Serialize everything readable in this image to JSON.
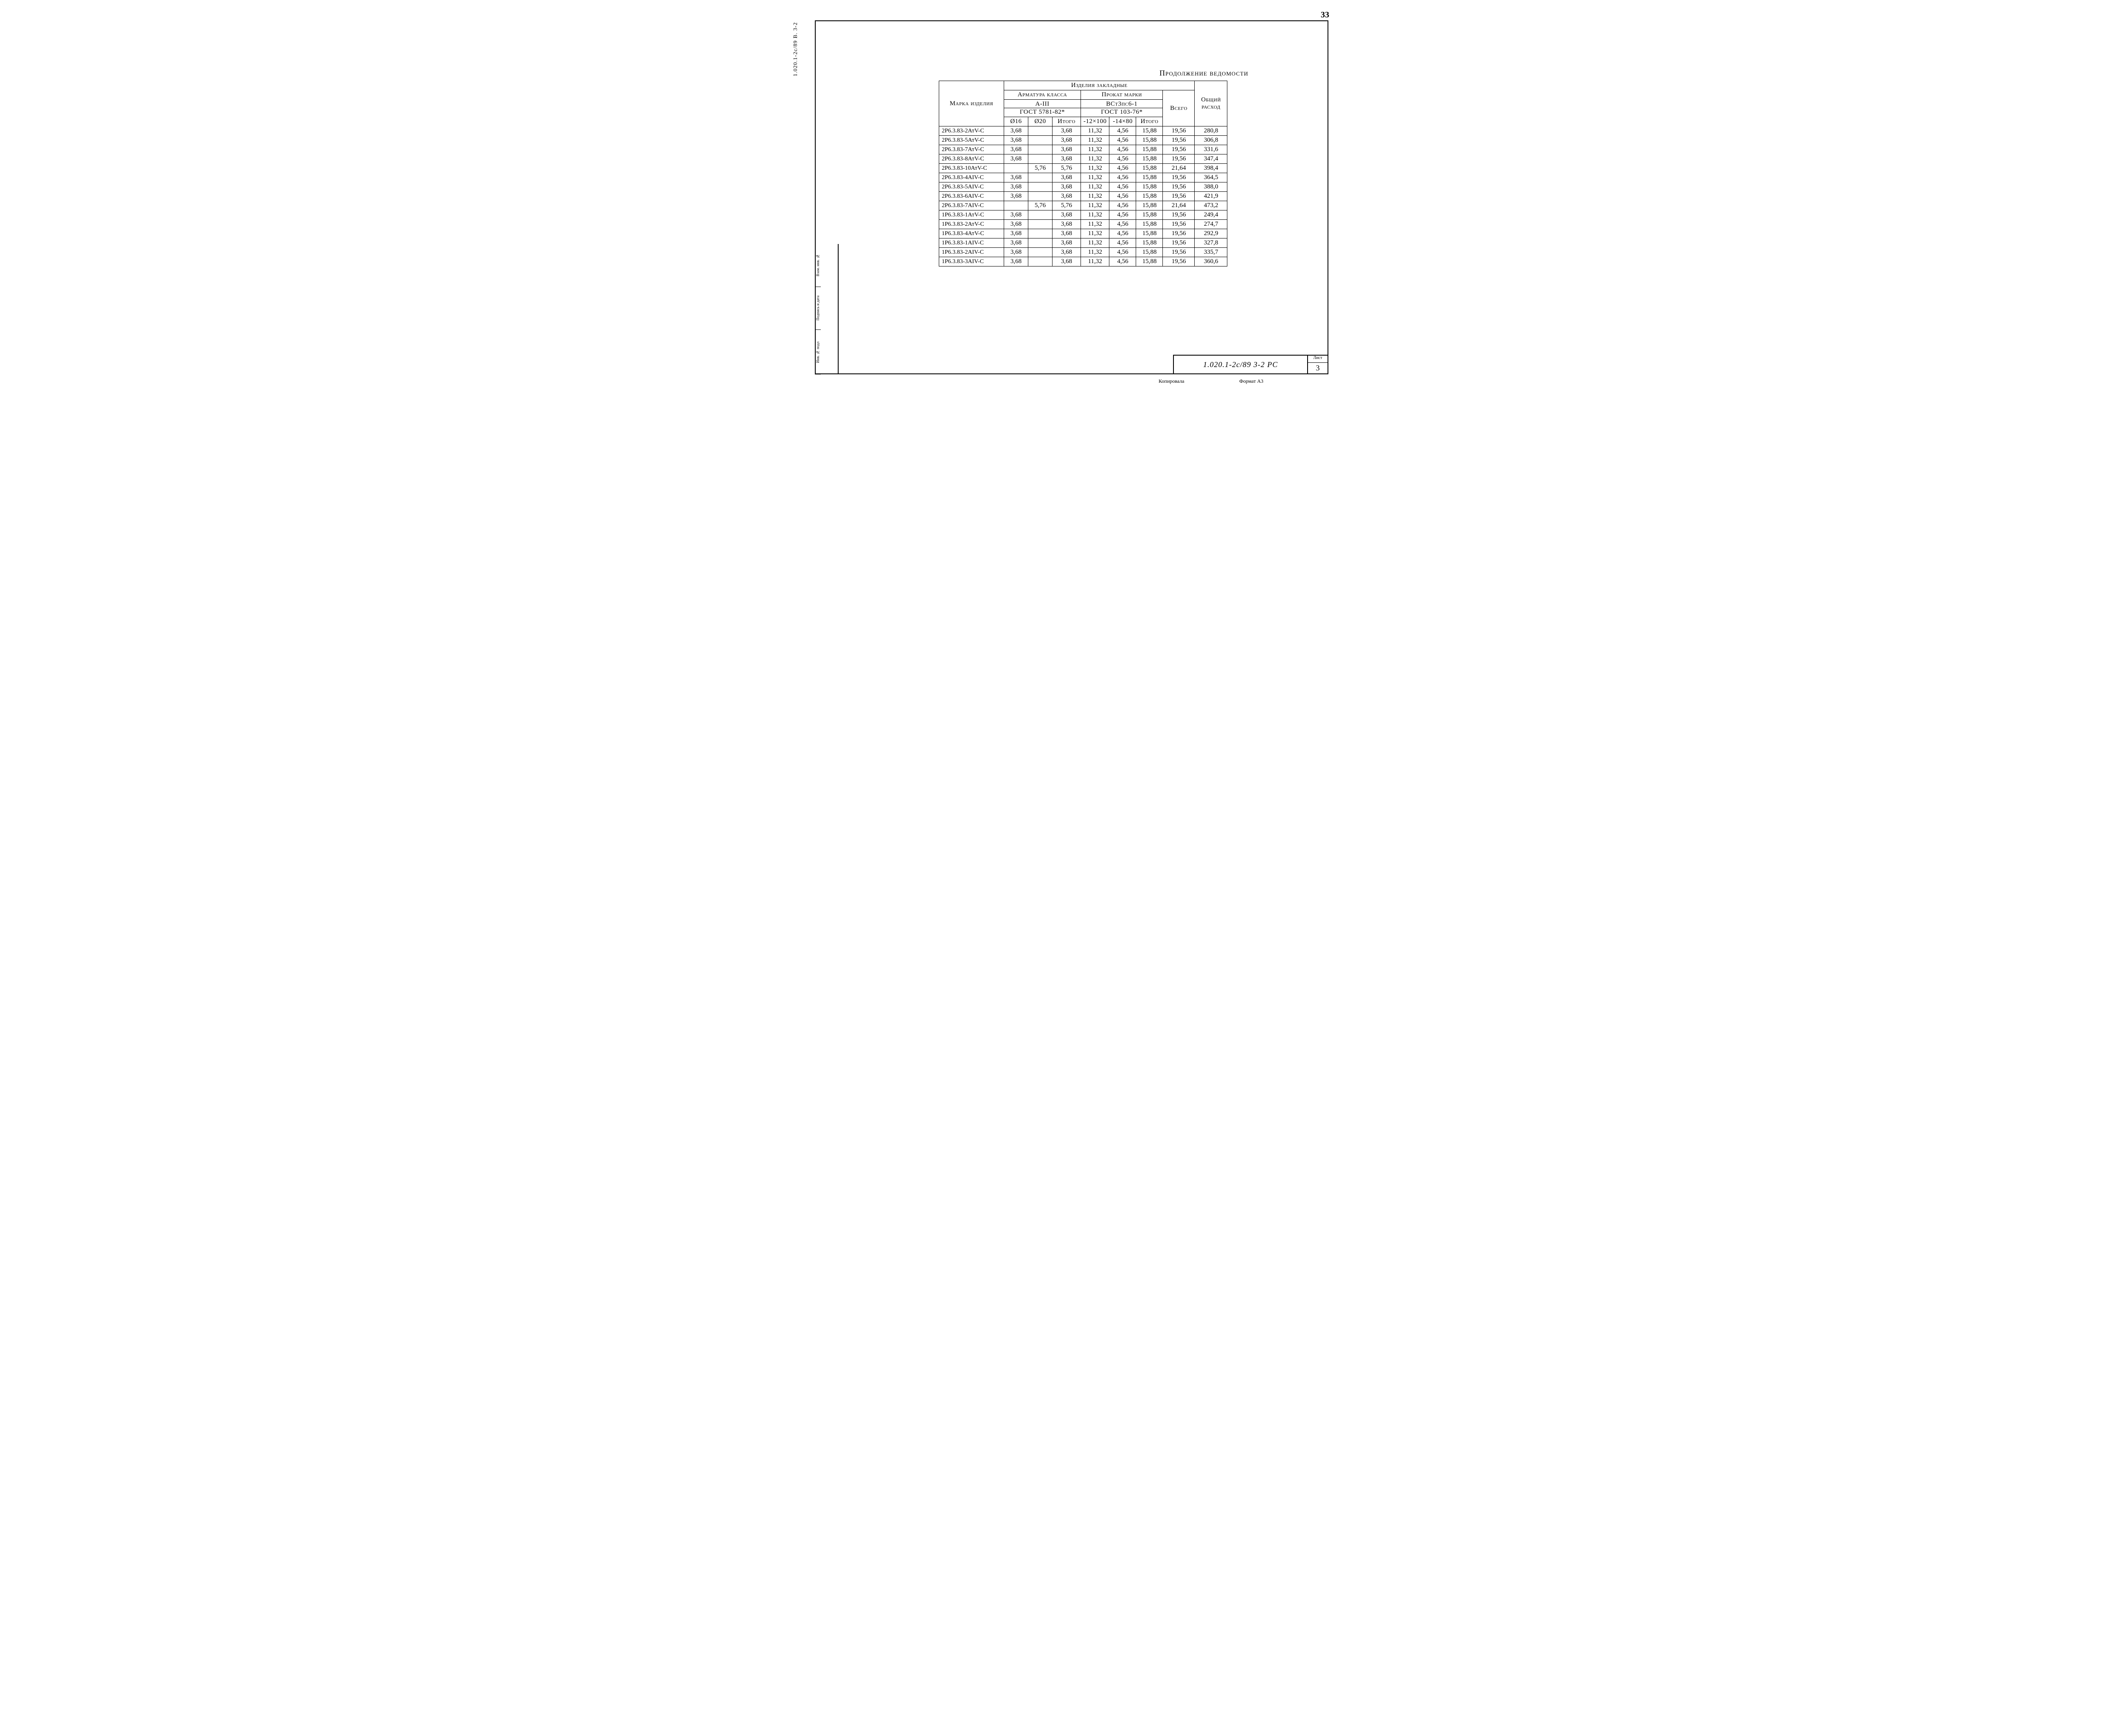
{
  "page_number_top": "33",
  "side_vertical_text": "1.020.1-2с/89   В. 3-2",
  "side_stamp_cells": [
    "Взам. инв. №",
    "Подпись и дата",
    "Инв. № подл"
  ],
  "caption": "Продолжение ведомости",
  "header": {
    "mark": "Марка изделия",
    "embedded": "Изделия закладные",
    "reinf_class": "Арматура класса",
    "reinf_sub": "А-III",
    "reinf_gost": "ГОСТ 5781-82*",
    "rolled_mark": "Прокат марки",
    "rolled_sub": "ВСт3пс6-1",
    "rolled_gost": "ГОСТ 103-76*",
    "d16": "Ø16",
    "d20": "Ø20",
    "itogo": "Итого",
    "p1": "-12×100",
    "p2": "-14×80",
    "vsego": "Всего",
    "grand": "Общий расход"
  },
  "rows": [
    {
      "mark": "2Р6.3.83-2АтV-С",
      "d16": "3,68",
      "d20": "",
      "it1": "3,68",
      "p1": "11,32",
      "p2": "4,56",
      "it2": "15,88",
      "tot": "19,56",
      "grand": "280,8"
    },
    {
      "mark": "2Р6.3.83-5АтV-С",
      "d16": "3,68",
      "d20": "",
      "it1": "3,68",
      "p1": "11,32",
      "p2": "4,56",
      "it2": "15,88",
      "tot": "19,56",
      "grand": "306,8"
    },
    {
      "mark": "2Р6.3.83-7АтV-С",
      "d16": "3,68",
      "d20": "",
      "it1": "3,68",
      "p1": "11,32",
      "p2": "4,56",
      "it2": "15,88",
      "tot": "19,56",
      "grand": "331,6"
    },
    {
      "mark": "2Р6.3.83-8АтV-С",
      "d16": "3,68",
      "d20": "",
      "it1": "3,68",
      "p1": "11,32",
      "p2": "4,56",
      "it2": "15,88",
      "tot": "19,56",
      "grand": "347,4"
    },
    {
      "mark": "2Р6.3.83-10АтV-С",
      "d16": "",
      "d20": "5,76",
      "it1": "5,76",
      "p1": "11,32",
      "p2": "4,56",
      "it2": "15,88",
      "tot": "21,64",
      "grand": "398,4"
    },
    {
      "mark": "2Р6.3.83-4АIV-С",
      "d16": "3,68",
      "d20": "",
      "it1": "3,68",
      "p1": "11,32",
      "p2": "4,56",
      "it2": "15,88",
      "tot": "19,56",
      "grand": "364,5"
    },
    {
      "mark": "2Р6.3.83-5АIV-С",
      "d16": "3,68",
      "d20": "",
      "it1": "3,68",
      "p1": "11,32",
      "p2": "4,56",
      "it2": "15,88",
      "tot": "19,56",
      "grand": "388,0"
    },
    {
      "mark": "2Р6.3.83-6АIV-С",
      "d16": "3,68",
      "d20": "",
      "it1": "3,68",
      "p1": "11,32",
      "p2": "4,56",
      "it2": "15,88",
      "tot": "19,56",
      "grand": "421,9"
    },
    {
      "mark": "2Р6.3.83-7АIV-С",
      "d16": "",
      "d20": "5,76",
      "it1": "5,76",
      "p1": "11,32",
      "p2": "4,56",
      "it2": "15,88",
      "tot": "21,64",
      "grand": "473,2"
    },
    {
      "mark": "1Р6.3.83-1АтV-С",
      "d16": "3,68",
      "d20": "",
      "it1": "3,68",
      "p1": "11,32",
      "p2": "4,56",
      "it2": "15,88",
      "tot": "19,56",
      "grand": "249,4"
    },
    {
      "mark": "1Р6.3.83-2АтV-С",
      "d16": "3,68",
      "d20": "",
      "it1": "3,68",
      "p1": "11,32",
      "p2": "4,56",
      "it2": "15,88",
      "tot": "19,56",
      "grand": "274,7"
    },
    {
      "mark": "1Р6.3.83-4АтV-С",
      "d16": "3,68",
      "d20": "",
      "it1": "3,68",
      "p1": "11,32",
      "p2": "4,56",
      "it2": "15,88",
      "tot": "19,56",
      "grand": "292,9"
    },
    {
      "mark": "1Р6.3.83-1АIV-С",
      "d16": "3,68",
      "d20": "",
      "it1": "3,68",
      "p1": "11,32",
      "p2": "4,56",
      "it2": "15,88",
      "tot": "19,56",
      "grand": "327,8"
    },
    {
      "mark": "1Р6.3.83-2АIV-С",
      "d16": "3,68",
      "d20": "",
      "it1": "3,68",
      "p1": "11,32",
      "p2": "4,56",
      "it2": "15,88",
      "tot": "19,56",
      "grand": "335,7"
    },
    {
      "mark": "1Р6.3.83-3АIV-С",
      "d16": "3,68",
      "d20": "",
      "it1": "3,68",
      "p1": "11,32",
      "p2": "4,56",
      "it2": "15,88",
      "tot": "19,56",
      "grand": "360,6"
    }
  ],
  "title_block": {
    "doc": "1.020.1-2с/89 3-2 РС",
    "sheet_label": "Лист",
    "sheet_num": "3"
  },
  "bottom": {
    "kopirovala": "Копировала",
    "format": "Формат А3"
  },
  "style": {
    "border_color": "#000000",
    "background_color": "#ffffff",
    "text_color": "#000000",
    "header_fontsize": 15,
    "body_fontsize": 15,
    "caption_fontsize": 18,
    "page_num_fontsize": 20,
    "font_family": "Times New Roman, serif"
  }
}
